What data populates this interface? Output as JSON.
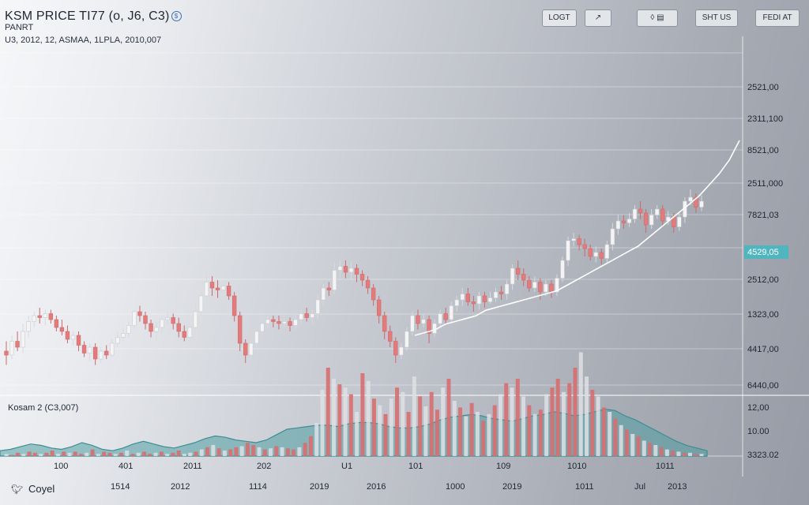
{
  "header": {
    "title": "KSM PRICE TI77 (o, J6, C3)",
    "title_badge": "$",
    "subtitle": "PANRT",
    "meta": "U3, 2012, 12, ASMAA, 1LPLA, 2010,007"
  },
  "toolbar": {
    "log_label": "LOGT",
    "draw_label": "↗",
    "tools_label": "◊ ▤",
    "shift_label": "SHT US",
    "fedat_label": "FEDI AT"
  },
  "indicator": {
    "label": "Kosam 2 (C3,007)"
  },
  "footer": {
    "icon": "bird-icon",
    "label": "Coyel"
  },
  "colors": {
    "up": "#f4f4f4",
    "down": "#e37b7c",
    "line": "#ffffff",
    "price_tag": "#4fb6bf",
    "area": "#4f9ea3"
  },
  "chart_data": {
    "type": "candlestick",
    "y_axis_labels": [
      "2521,00",
      "2311,100",
      "8521,00",
      "2511,000",
      "7821,03",
      "4529,05",
      "2512,00",
      "1323,00",
      "4417,00",
      "6440,00"
    ],
    "current_price_label": "4529,05",
    "indicator_axis_labels": [
      "12,00",
      "10.00",
      "3323.02"
    ],
    "x_labels_row1": [
      "100",
      "401",
      "2011",
      "202",
      "U1",
      "101",
      "109",
      "1010",
      "1011"
    ],
    "x_labels_row2": [
      "1514",
      "2012",
      "1114",
      "2019",
      "2016",
      "1000",
      "2019",
      "1011",
      "Jul",
      "2013"
    ],
    "candles": [
      [
        10,
        8,
        15,
        3
      ],
      [
        8,
        15,
        18,
        6
      ],
      [
        15,
        12,
        20,
        10
      ],
      [
        12,
        20,
        24,
        9
      ],
      [
        20,
        25,
        28,
        17
      ],
      [
        25,
        28,
        30,
        22
      ],
      [
        28,
        27,
        32,
        24
      ],
      [
        27,
        29,
        31,
        23
      ],
      [
        29,
        26,
        31,
        24
      ],
      [
        26,
        22,
        28,
        20
      ],
      [
        22,
        20,
        26,
        18
      ],
      [
        20,
        16,
        23,
        14
      ],
      [
        16,
        18,
        20,
        13
      ],
      [
        18,
        13,
        20,
        10
      ],
      [
        13,
        9,
        15,
        7
      ],
      [
        9,
        12,
        14,
        5
      ],
      [
        12,
        6,
        14,
        3
      ],
      [
        6,
        10,
        12,
        4
      ],
      [
        10,
        8,
        13,
        6
      ],
      [
        8,
        14,
        16,
        7
      ],
      [
        14,
        17,
        20,
        12
      ],
      [
        17,
        19,
        22,
        15
      ],
      [
        19,
        23,
        25,
        17
      ],
      [
        23,
        30,
        31,
        21
      ],
      [
        30,
        28,
        33,
        25
      ],
      [
        28,
        24,
        30,
        21
      ],
      [
        24,
        20,
        26,
        17
      ],
      [
        20,
        22,
        25,
        16
      ],
      [
        22,
        26,
        28,
        19
      ],
      [
        26,
        27,
        30,
        23
      ],
      [
        27,
        24,
        29,
        21
      ],
      [
        24,
        20,
        27,
        17
      ],
      [
        20,
        17,
        23,
        15
      ],
      [
        17,
        22,
        24,
        14
      ],
      [
        22,
        30,
        33,
        20
      ],
      [
        30,
        38,
        41,
        27
      ],
      [
        38,
        45,
        50,
        35
      ],
      [
        45,
        42,
        48,
        38
      ],
      [
        42,
        41,
        46,
        37
      ],
      [
        41,
        43,
        46,
        39
      ],
      [
        43,
        38,
        45,
        36
      ],
      [
        38,
        28,
        40,
        25
      ],
      [
        28,
        14,
        30,
        10
      ],
      [
        14,
        8,
        16,
        4
      ],
      [
        8,
        14,
        16,
        6
      ],
      [
        14,
        20,
        22,
        11
      ],
      [
        20,
        24,
        27,
        18
      ],
      [
        24,
        26,
        29,
        21
      ],
      [
        26,
        25,
        28,
        22
      ],
      [
        25,
        24,
        28,
        21
      ],
      [
        24,
        25,
        27,
        22
      ],
      [
        25,
        23,
        27,
        20
      ],
      [
        23,
        26,
        28,
        21
      ],
      [
        26,
        29,
        31,
        24
      ],
      [
        29,
        27,
        32,
        25
      ],
      [
        27,
        29,
        31,
        24
      ],
      [
        29,
        36,
        39,
        26
      ],
      [
        36,
        42,
        44,
        33
      ],
      [
        42,
        41,
        45,
        38
      ],
      [
        41,
        51,
        55,
        39
      ],
      [
        51,
        53,
        56,
        47
      ],
      [
        53,
        50,
        56,
        47
      ],
      [
        50,
        52,
        55,
        46
      ],
      [
        52,
        49,
        54,
        45
      ],
      [
        49,
        46,
        51,
        43
      ],
      [
        46,
        42,
        48,
        39
      ],
      [
        42,
        36,
        44,
        33
      ],
      [
        36,
        28,
        38,
        24
      ],
      [
        28,
        20,
        30,
        16
      ],
      [
        20,
        15,
        23,
        12
      ],
      [
        15,
        8,
        17,
        4
      ],
      [
        8,
        12,
        14,
        6
      ],
      [
        12,
        20,
        22,
        10
      ],
      [
        20,
        28,
        30,
        18
      ],
      [
        28,
        24,
        31,
        21
      ],
      [
        24,
        26,
        29,
        22
      ],
      [
        26,
        19,
        28,
        14
      ],
      [
        19,
        24,
        26,
        17
      ],
      [
        24,
        29,
        31,
        22
      ],
      [
        29,
        26,
        32,
        24
      ],
      [
        26,
        33,
        35,
        24
      ],
      [
        33,
        36,
        38,
        30
      ],
      [
        36,
        39,
        42,
        33
      ],
      [
        39,
        35,
        42,
        33
      ],
      [
        35,
        34,
        38,
        30
      ],
      [
        34,
        38,
        40,
        31
      ],
      [
        38,
        35,
        40,
        32
      ],
      [
        35,
        37,
        40,
        34
      ],
      [
        37,
        40,
        42,
        35
      ],
      [
        40,
        39,
        43,
        36
      ],
      [
        39,
        44,
        46,
        36
      ],
      [
        44,
        52,
        54,
        41
      ],
      [
        52,
        49,
        56,
        46
      ],
      [
        49,
        46,
        52,
        43
      ],
      [
        46,
        42,
        48,
        40
      ],
      [
        42,
        45,
        48,
        40
      ],
      [
        45,
        40,
        47,
        36
      ],
      [
        40,
        44,
        46,
        38
      ],
      [
        44,
        40,
        46,
        37
      ],
      [
        40,
        47,
        49,
        38
      ],
      [
        47,
        56,
        58,
        45
      ],
      [
        56,
        66,
        68,
        53
      ],
      [
        66,
        67,
        70,
        63
      ],
      [
        67,
        64,
        69,
        61
      ],
      [
        64,
        62,
        67,
        58
      ],
      [
        62,
        58,
        64,
        56
      ],
      [
        58,
        60,
        63,
        55
      ],
      [
        60,
        57,
        62,
        54
      ],
      [
        57,
        64,
        66,
        55
      ],
      [
        64,
        72,
        75,
        61
      ],
      [
        72,
        76,
        79,
        69
      ],
      [
        76,
        75,
        79,
        72
      ],
      [
        75,
        77,
        80,
        73
      ],
      [
        77,
        82,
        84,
        75
      ],
      [
        82,
        80,
        86,
        77
      ],
      [
        80,
        74,
        82,
        70
      ],
      [
        74,
        79,
        82,
        72
      ],
      [
        79,
        82,
        84,
        77
      ],
      [
        82,
        76,
        84,
        73
      ],
      [
        76,
        78,
        81,
        74
      ],
      [
        78,
        73,
        80,
        70
      ],
      [
        73,
        78,
        80,
        71
      ],
      [
        78,
        86,
        88,
        75
      ],
      [
        86,
        88,
        92,
        84
      ],
      [
        88,
        83,
        90,
        80
      ],
      [
        83,
        86,
        89,
        81
      ]
    ],
    "volume": [
      [
        2,
        0
      ],
      [
        1,
        1
      ],
      [
        3,
        1
      ],
      [
        2,
        0
      ],
      [
        4,
        1
      ],
      [
        3,
        1
      ],
      [
        2,
        0
      ],
      [
        3,
        1
      ],
      [
        5,
        1
      ],
      [
        2,
        0
      ],
      [
        4,
        1
      ],
      [
        3,
        0
      ],
      [
        4,
        1
      ],
      [
        2,
        1
      ],
      [
        3,
        0
      ],
      [
        6,
        1
      ],
      [
        2,
        0
      ],
      [
        4,
        1
      ],
      [
        3,
        1
      ],
      [
        2,
        0
      ],
      [
        3,
        1
      ],
      [
        5,
        0
      ],
      [
        2,
        1
      ],
      [
        3,
        0
      ],
      [
        4,
        1
      ],
      [
        2,
        1
      ],
      [
        3,
        0
      ],
      [
        4,
        1
      ],
      [
        2,
        0
      ],
      [
        3,
        1
      ],
      [
        5,
        1
      ],
      [
        2,
        0
      ],
      [
        3,
        0
      ],
      [
        4,
        1
      ],
      [
        6,
        0
      ],
      [
        8,
        1
      ],
      [
        10,
        0
      ],
      [
        7,
        1
      ],
      [
        5,
        0
      ],
      [
        6,
        1
      ],
      [
        8,
        1
      ],
      [
        9,
        0
      ],
      [
        12,
        1
      ],
      [
        10,
        1
      ],
      [
        8,
        0
      ],
      [
        6,
        1
      ],
      [
        7,
        0
      ],
      [
        9,
        1
      ],
      [
        8,
        0
      ],
      [
        7,
        1
      ],
      [
        6,
        1
      ],
      [
        8,
        0
      ],
      [
        12,
        1
      ],
      [
        18,
        1
      ],
      [
        30,
        0
      ],
      [
        60,
        0
      ],
      [
        80,
        1
      ],
      [
        70,
        0
      ],
      [
        65,
        1
      ],
      [
        62,
        0
      ],
      [
        56,
        1
      ],
      [
        40,
        0
      ],
      [
        75,
        1
      ],
      [
        68,
        0
      ],
      [
        52,
        1
      ],
      [
        46,
        0
      ],
      [
        38,
        1
      ],
      [
        52,
        0
      ],
      [
        62,
        1
      ],
      [
        58,
        0
      ],
      [
        40,
        1
      ],
      [
        72,
        0
      ],
      [
        54,
        1
      ],
      [
        45,
        0
      ],
      [
        58,
        1
      ],
      [
        42,
        1
      ],
      [
        62,
        0
      ],
      [
        70,
        1
      ],
      [
        50,
        0
      ],
      [
        44,
        1
      ],
      [
        36,
        0
      ],
      [
        48,
        1
      ],
      [
        40,
        0
      ],
      [
        32,
        1
      ],
      [
        38,
        0
      ],
      [
        46,
        1
      ],
      [
        56,
        0
      ],
      [
        66,
        1
      ],
      [
        62,
        0
      ],
      [
        70,
        1
      ],
      [
        54,
        0
      ],
      [
        46,
        1
      ],
      [
        38,
        0
      ],
      [
        42,
        1
      ],
      [
        56,
        0
      ],
      [
        62,
        1
      ],
      [
        70,
        1
      ],
      [
        58,
        0
      ],
      [
        66,
        1
      ],
      [
        80,
        1
      ],
      [
        94,
        0
      ],
      [
        72,
        0
      ],
      [
        60,
        1
      ],
      [
        54,
        0
      ],
      [
        44,
        1
      ],
      [
        40,
        0
      ],
      [
        34,
        1
      ],
      [
        28,
        0
      ],
      [
        24,
        1
      ],
      [
        20,
        0
      ],
      [
        18,
        1
      ],
      [
        14,
        0
      ],
      [
        12,
        1
      ],
      [
        10,
        0
      ],
      [
        8,
        1
      ],
      [
        6,
        0
      ],
      [
        5,
        1
      ],
      [
        4,
        0
      ],
      [
        3,
        1
      ],
      [
        3,
        0
      ],
      [
        2,
        1
      ],
      [
        2,
        0
      ]
    ],
    "ema": [
      30,
      31,
      32,
      34,
      35,
      36,
      37,
      39,
      40,
      41,
      42,
      43,
      44,
      45,
      46,
      48,
      50,
      52,
      54,
      56,
      58,
      60,
      62,
      65,
      68,
      71,
      74,
      77,
      80,
      84,
      88,
      93,
      100
    ],
    "area_wave": [
      4,
      5,
      7,
      9,
      8,
      6,
      5,
      7,
      10,
      8,
      5,
      4,
      6,
      9,
      11,
      9,
      7,
      6,
      8,
      10,
      13,
      15,
      14,
      12,
      11,
      10,
      12,
      16,
      20,
      21,
      22,
      23,
      23,
      22,
      24,
      25,
      25,
      24,
      22,
      21,
      21,
      22,
      24,
      27,
      29,
      30,
      31,
      30,
      28,
      27,
      26,
      28,
      30,
      31,
      33,
      32,
      30,
      31,
      33,
      35,
      34,
      30,
      27,
      23,
      19,
      15,
      11,
      8,
      6,
      4
    ]
  }
}
